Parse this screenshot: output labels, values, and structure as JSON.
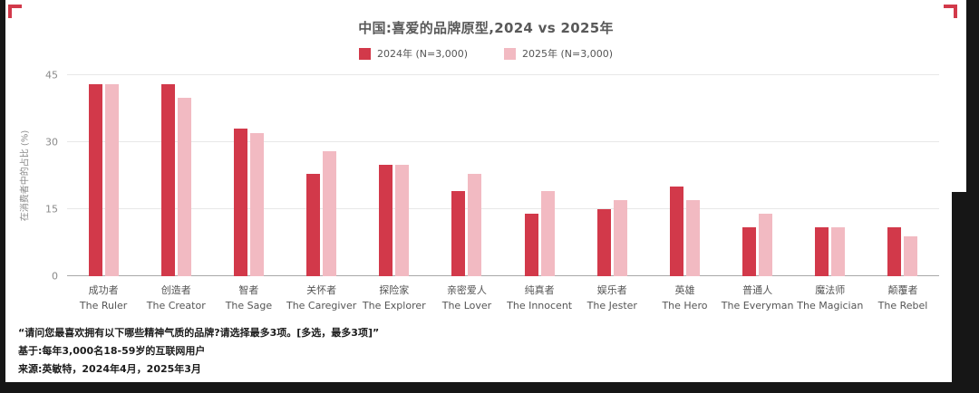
{
  "colors": {
    "accent": "#d2394a",
    "bar_2024": "#d2394a",
    "bar_2025": "#f2bac2",
    "card_bg": "#ffffff",
    "page_bg": "#161616"
  },
  "chart_data": {
    "type": "bar",
    "title": "中国:喜爱的品牌原型,2024 vs 2025年",
    "xlabel": "",
    "ylabel": "在消费者中的占比 (%)",
    "ylim": [
      0,
      45
    ],
    "yticks": [
      0,
      15,
      30,
      45
    ],
    "grid": true,
    "legend_position": "top",
    "categories": [
      {
        "cn": "成功者",
        "en": "The Ruler"
      },
      {
        "cn": "创造者",
        "en": "The Creator"
      },
      {
        "cn": "智者",
        "en": "The Sage"
      },
      {
        "cn": "关怀者",
        "en": "The Caregiver"
      },
      {
        "cn": "探险家",
        "en": "The Explorer"
      },
      {
        "cn": "亲密爱人",
        "en": "The Lover"
      },
      {
        "cn": "纯真者",
        "en": "The Innocent"
      },
      {
        "cn": "娱乐者",
        "en": "The Jester"
      },
      {
        "cn": "英雄",
        "en": "The Hero"
      },
      {
        "cn": "普通人",
        "en": "The Everyman"
      },
      {
        "cn": "魔法师",
        "en": "The Magician"
      },
      {
        "cn": "颠覆者",
        "en": "The Rebel"
      }
    ],
    "series": [
      {
        "name": "2024年 (N=3,000)",
        "color": "#d2394a",
        "values": [
          43,
          43,
          33,
          23,
          25,
          19,
          14,
          15,
          20,
          11,
          11,
          11
        ]
      },
      {
        "name": "2025年 (N=3,000)",
        "color": "#f2bac2",
        "values": [
          43,
          40,
          32,
          28,
          25,
          23,
          19,
          17,
          17,
          14,
          11,
          9
        ]
      }
    ]
  },
  "footnotes": [
    "“请问您最喜欢拥有以下哪些精神气质的品牌?请选择最多3项。[多选，最多3项]”",
    "基于:每年3,000名18-59岁的互联网用户",
    "来源:英敏特，2024年4月，2025年3月"
  ]
}
